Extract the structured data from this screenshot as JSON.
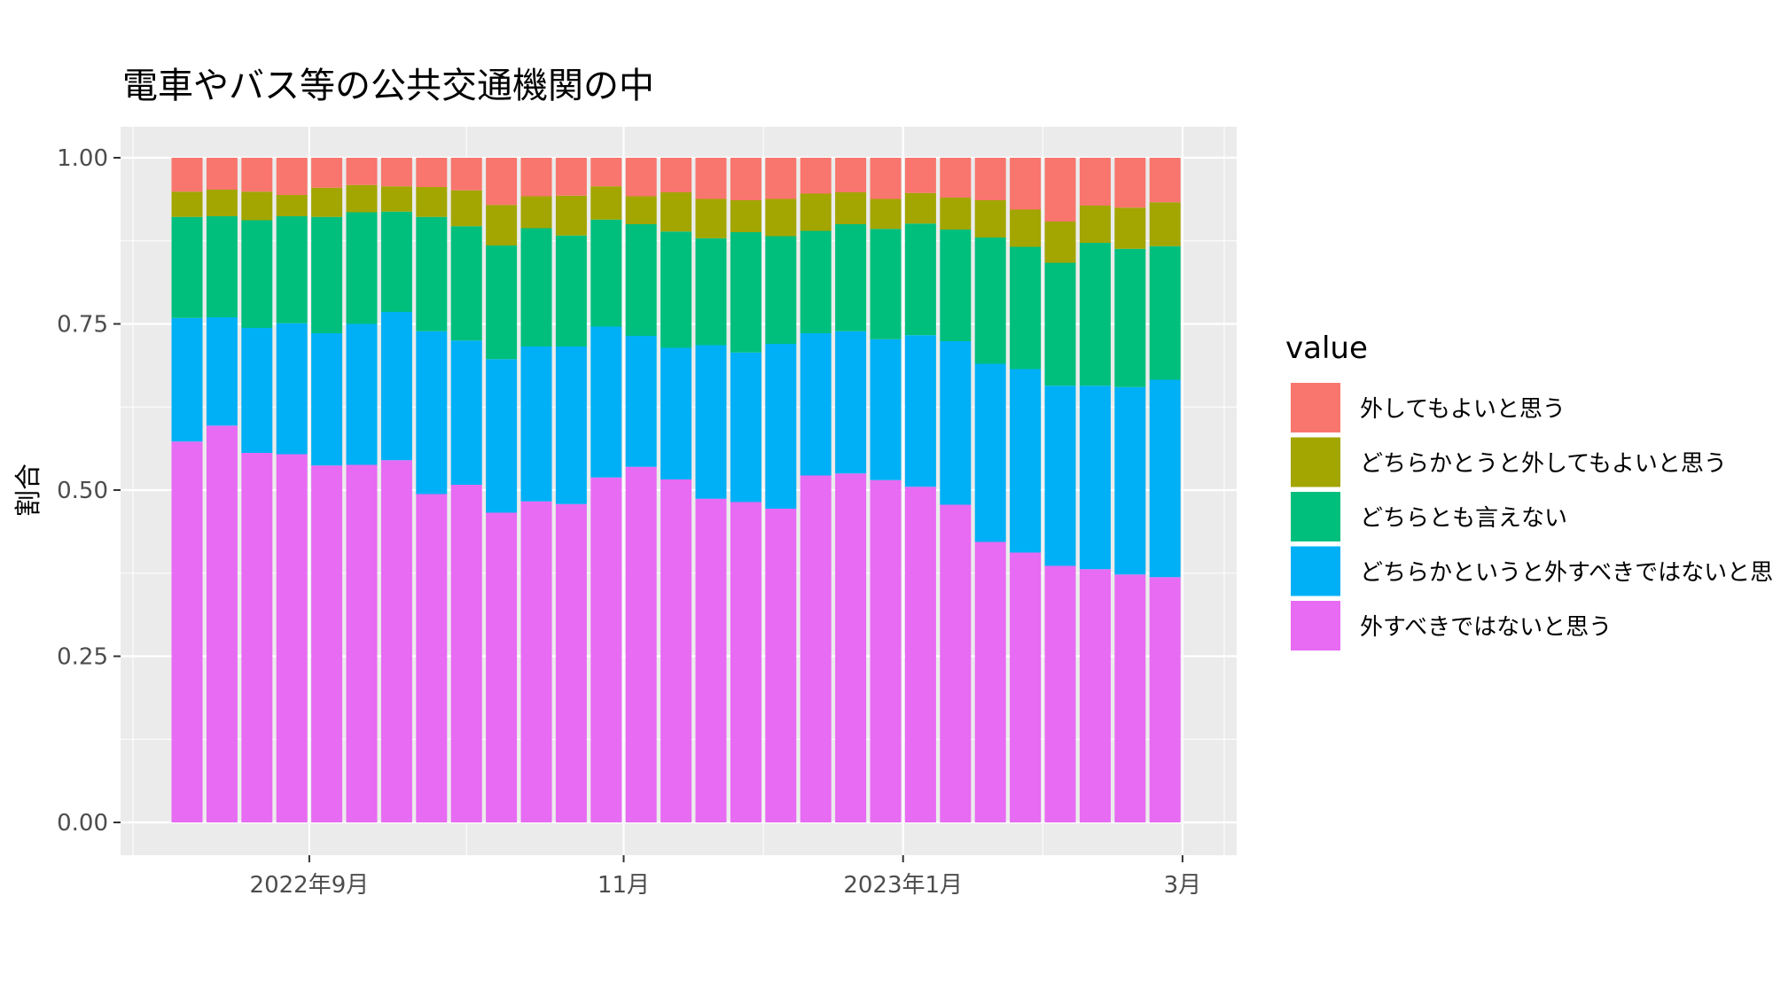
{
  "chart_data": {
    "type": "bar",
    "stacked": true,
    "title": "電車やバス等の公共交通機関の中",
    "xlabel": "",
    "ylabel": "割合",
    "ylim": [
      0,
      1
    ],
    "grid": true,
    "legend_position": "right",
    "legend_title": "value",
    "y_ticks": [
      "0.00",
      "0.25",
      "0.50",
      "0.75",
      "1.00"
    ],
    "y_tick_values": [
      0,
      0.25,
      0.5,
      0.75,
      1.0
    ],
    "x_ticks": [
      "2022年9月",
      "11月",
      "2023年1月",
      "3月"
    ],
    "x_tick_bar_positions": [
      3.5,
      12.5,
      20.5,
      28.5
    ],
    "bar_count": 29,
    "series": [
      {
        "name": "外すべきではないと思う",
        "color": "#E76BF3",
        "values": [
          0.573,
          0.597,
          0.556,
          0.554,
          0.537,
          0.538,
          0.545,
          0.494,
          0.508,
          0.466,
          0.483,
          0.479,
          0.519,
          0.535,
          0.516,
          0.487,
          0.482,
          0.472,
          0.522,
          0.525,
          0.515,
          0.505,
          0.478,
          0.422,
          0.406,
          0.386,
          0.381,
          0.373,
          0.369
        ]
      },
      {
        "name": "どちらかというと外すべきではないと思う",
        "color": "#00B0F6",
        "values": [
          0.186,
          0.163,
          0.188,
          0.197,
          0.199,
          0.212,
          0.223,
          0.245,
          0.217,
          0.231,
          0.233,
          0.237,
          0.227,
          0.197,
          0.198,
          0.231,
          0.225,
          0.248,
          0.214,
          0.214,
          0.212,
          0.228,
          0.246,
          0.268,
          0.276,
          0.271,
          0.276,
          0.282,
          0.297
        ]
      },
      {
        "name": "どちらとも言えない",
        "color": "#00BF7D",
        "values": [
          0.152,
          0.152,
          0.162,
          0.161,
          0.175,
          0.168,
          0.151,
          0.172,
          0.172,
          0.171,
          0.178,
          0.167,
          0.161,
          0.168,
          0.175,
          0.161,
          0.181,
          0.162,
          0.154,
          0.161,
          0.166,
          0.168,
          0.168,
          0.19,
          0.184,
          0.185,
          0.215,
          0.208,
          0.201
        ]
      },
      {
        "name": "どちらかとうと外してもよいと思う",
        "color": "#A3A500",
        "values": [
          0.038,
          0.04,
          0.043,
          0.032,
          0.044,
          0.041,
          0.038,
          0.045,
          0.054,
          0.061,
          0.048,
          0.06,
          0.05,
          0.042,
          0.059,
          0.059,
          0.048,
          0.056,
          0.056,
          0.048,
          0.045,
          0.046,
          0.048,
          0.056,
          0.056,
          0.062,
          0.056,
          0.062,
          0.066
        ]
      },
      {
        "name": "外してもよいと思う",
        "color": "#F8766D",
        "values": [
          0.051,
          0.048,
          0.051,
          0.056,
          0.045,
          0.041,
          0.043,
          0.044,
          0.049,
          0.071,
          0.058,
          0.057,
          0.043,
          0.058,
          0.052,
          0.062,
          0.064,
          0.062,
          0.054,
          0.052,
          0.062,
          0.053,
          0.06,
          0.064,
          0.078,
          0.096,
          0.072,
          0.075,
          0.067
        ]
      }
    ]
  }
}
